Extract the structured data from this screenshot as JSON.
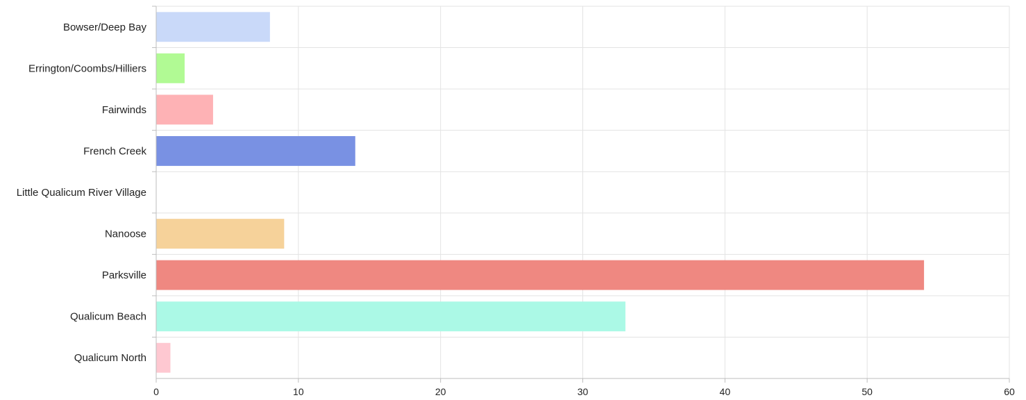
{
  "chart_data": {
    "type": "bar",
    "orientation": "horizontal",
    "title": "",
    "xlabel": "",
    "ylabel": "",
    "categories": [
      "Bowser/Deep Bay",
      "Errington/Coombs/Hilliers",
      "Fairwinds",
      "French Creek",
      "Little Qualicum River Village",
      "Nanoose",
      "Parksville",
      "Qualicum Beach",
      "Qualicum North"
    ],
    "values": [
      8,
      2,
      4,
      14,
      0,
      9,
      54,
      33,
      1
    ],
    "colors": [
      "#c9d9f9",
      "#b1fa94",
      "#feb2b5",
      "#7991e3",
      "#d9d9d9",
      "#f6d29a",
      "#ef8881",
      "#abf9e6",
      "#fec8d1"
    ],
    "xlim": [
      0,
      60
    ],
    "xticks": [
      0,
      10,
      20,
      30,
      40,
      50,
      60
    ],
    "grid": true,
    "legend": "none"
  }
}
